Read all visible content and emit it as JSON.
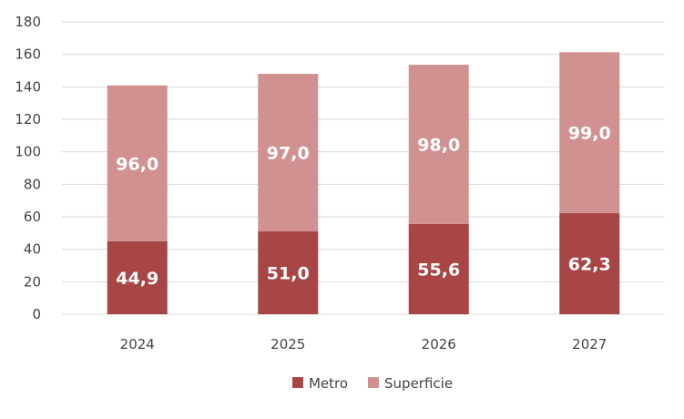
{
  "chart_data": {
    "type": "bar",
    "stacked": true,
    "title": "",
    "xlabel": "",
    "ylabel": "",
    "categories": [
      "2024",
      "2025",
      "2026",
      "2027"
    ],
    "series": [
      {
        "name": "Metro",
        "color": "#a84646",
        "values": [
          44.9,
          51.0,
          55.6,
          62.3
        ],
        "labels": [
          "44,9",
          "51,0",
          "55,6",
          "62,3"
        ]
      },
      {
        "name": "Superficie",
        "color": "#d29191",
        "values": [
          96.0,
          97.0,
          98.0,
          99.0
        ],
        "labels": [
          "96,0",
          "97,0",
          "98,0",
          "99,0"
        ]
      }
    ],
    "ylim": [
      0,
      180
    ],
    "yticks": [
      "0",
      "20",
      "40",
      "60",
      "80",
      "100",
      "120",
      "140",
      "160",
      "180"
    ],
    "grid": true,
    "legend_position": "bottom"
  }
}
